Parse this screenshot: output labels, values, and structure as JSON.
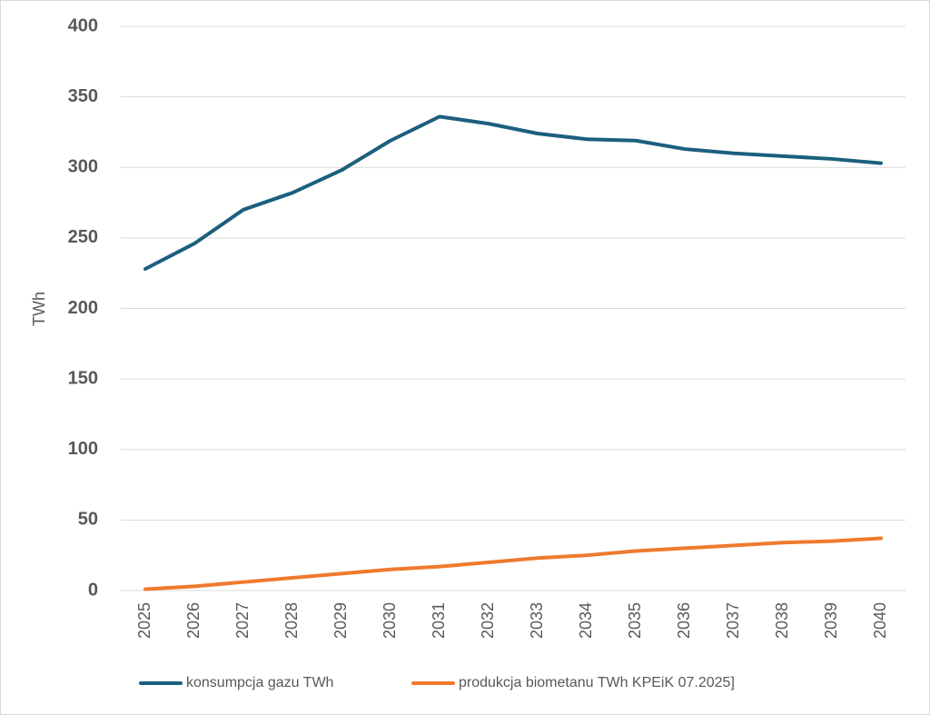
{
  "chart_data": {
    "type": "line",
    "y_label": "TWh",
    "categories": [
      "2025",
      "2026",
      "2027",
      "2028",
      "2029",
      "2030",
      "2031",
      "2032",
      "2033",
      "2034",
      "2035",
      "2036",
      "2037",
      "2038",
      "2039",
      "2040"
    ],
    "series": [
      {
        "name": "konsumpcja gazu TWh",
        "color": "#1c5f7e",
        "values": [
          228,
          246,
          270,
          282,
          298,
          319,
          336,
          331,
          324,
          320,
          319,
          313,
          310,
          308,
          306,
          303
        ]
      },
      {
        "name": "produkcja biometanu TWh KPEiK 07.2025]",
        "color": "#ef7a2e",
        "values": [
          1,
          3,
          6,
          9,
          12,
          15,
          17,
          20,
          23,
          25,
          28,
          30,
          32,
          34,
          35,
          37
        ]
      }
    ],
    "ylim": [
      0,
      400
    ],
    "yticks": [
      0,
      50,
      100,
      150,
      200,
      250,
      300,
      350,
      400
    ],
    "grid": true,
    "legend": "bottom"
  }
}
